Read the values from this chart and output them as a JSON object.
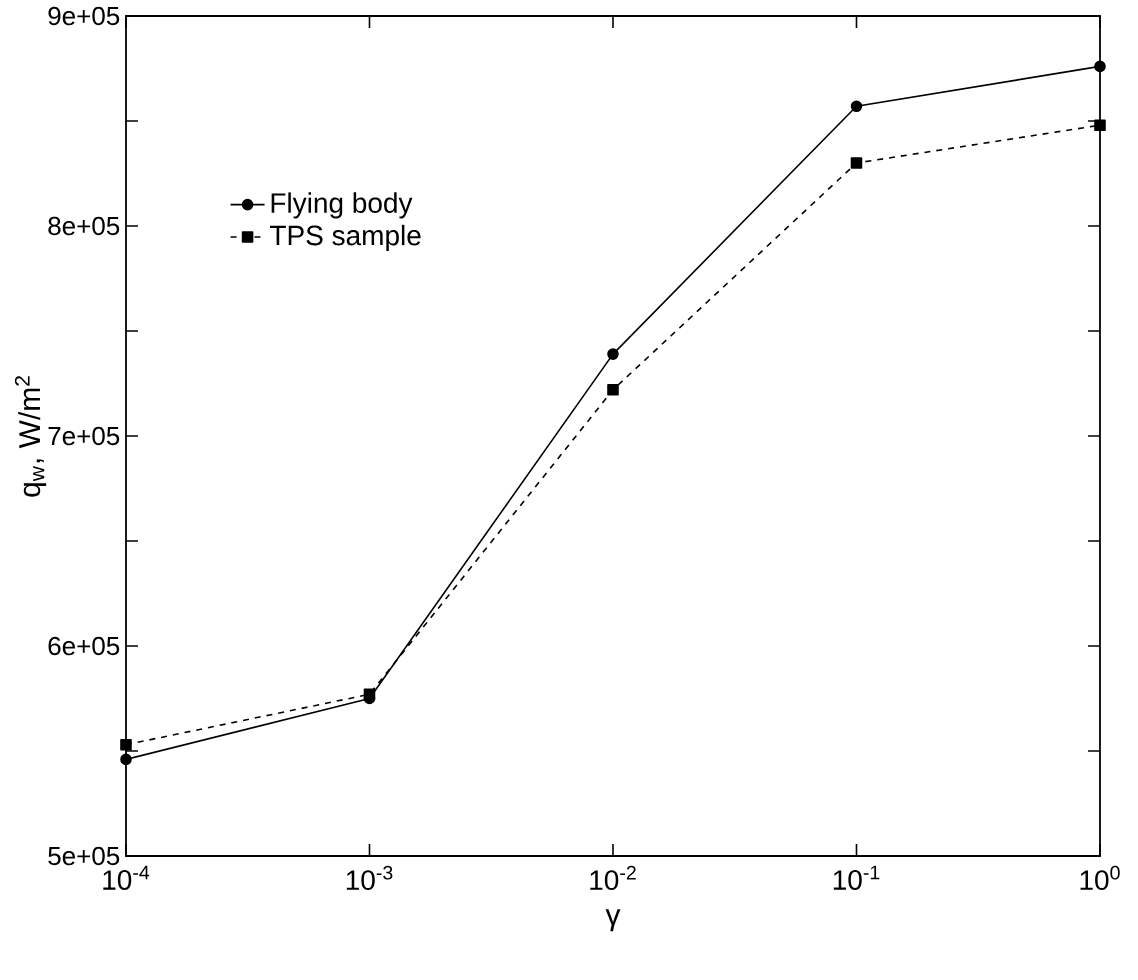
{
  "chart_data": {
    "type": "line",
    "xlabel": "γ",
    "ylabel": "q$_{w}$, W/m$^{2}$",
    "log": "x",
    "x": [
      0.0001,
      0.001,
      0.01,
      0.1,
      1
    ],
    "xlim": [
      0.0001,
      1
    ],
    "ylim": [
      500000,
      900000
    ],
    "xticks": [
      {
        "value": 0.0001,
        "label": "10$^{-4}$"
      },
      {
        "value": 0.001,
        "label": "10$^{-3}$"
      },
      {
        "value": 0.01,
        "label": "10$^{-2}$"
      },
      {
        "value": 0.1,
        "label": "10$^{-1}$"
      },
      {
        "value": 1,
        "label": "10$^{0}$"
      }
    ],
    "yticks": [
      {
        "value": 500000,
        "label": "5e+05"
      },
      {
        "value": 550000,
        "label": null
      },
      {
        "value": 600000,
        "label": "6e+05"
      },
      {
        "value": 650000,
        "label": null
      },
      {
        "value": 700000,
        "label": "7e+05"
      },
      {
        "value": 750000,
        "label": null
      },
      {
        "value": 800000,
        "label": "8e+05"
      },
      {
        "value": 850000,
        "label": null
      },
      {
        "value": 900000,
        "label": "9e+05"
      }
    ],
    "grid": false,
    "legend": "top left",
    "series": [
      {
        "name": "Flying body",
        "color": "#000000",
        "marker": "circle",
        "line_style": "solid",
        "values": [
          546000,
          575000,
          739000,
          857000,
          876000
        ]
      },
      {
        "name": "TPS sample",
        "color": "#000000",
        "marker": "square",
        "line_style": "dashed",
        "values": [
          553000,
          577000,
          722000,
          830000,
          848000
        ]
      }
    ]
  }
}
